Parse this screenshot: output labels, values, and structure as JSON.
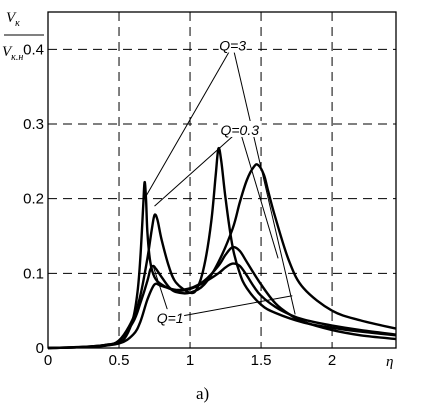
{
  "caption": "а)",
  "chart_data": {
    "type": "line",
    "title": "",
    "ylabel_numerator": "V",
    "ylabel_numerator_sub": "к",
    "ylabel_denominator": "V",
    "ylabel_denominator_sub": "к.н",
    "xlabel": "η",
    "xlim": [
      0,
      2.45
    ],
    "ylim": [
      0,
      0.45
    ],
    "xticks": [
      {
        "value": 0,
        "label": "0"
      },
      {
        "value": 0.5,
        "label": "0.5"
      },
      {
        "value": 1,
        "label": "1"
      },
      {
        "value": 1.5,
        "label": "1.5"
      },
      {
        "value": 2,
        "label": "2"
      }
    ],
    "yticks": [
      {
        "value": 0,
        "label": "0"
      },
      {
        "value": 0.1,
        "label": "0.1"
      },
      {
        "value": 0.2,
        "label": "0.2"
      },
      {
        "value": 0.3,
        "label": "0.3"
      },
      {
        "value": 0.4,
        "label": "0.4"
      }
    ],
    "grid": true,
    "annotations": [
      {
        "label": "Q=3",
        "text_x": 1.3,
        "text_y": 0.405,
        "targets": [
          [
            0.68,
            0.2
          ],
          [
            1.74,
            0.045
          ]
        ]
      },
      {
        "label": "Q=0.3",
        "text_x": 1.35,
        "text_y": 0.292,
        "targets": [
          [
            0.75,
            0.19
          ],
          [
            1.62,
            0.12
          ]
        ]
      },
      {
        "label": "Q=1",
        "text_x": 0.86,
        "text_y": 0.04,
        "targets": [
          [
            0.74,
            0.11
          ],
          [
            1.72,
            0.07
          ]
        ]
      }
    ],
    "series": [
      {
        "x": [
          0.0,
          0.2,
          0.4,
          0.5,
          0.55,
          0.6,
          0.63,
          0.65,
          0.67,
          0.68,
          0.69,
          0.7,
          0.72,
          0.75,
          0.8,
          0.9,
          1.0,
          1.1,
          1.2,
          1.25,
          1.3,
          1.35,
          1.4,
          1.45,
          1.5,
          1.6,
          1.7,
          1.8,
          2.0,
          2.2,
          2.45
        ],
        "y": [
          0.0,
          0.001,
          0.003,
          0.008,
          0.016,
          0.04,
          0.075,
          0.12,
          0.19,
          0.222,
          0.2,
          0.155,
          0.115,
          0.095,
          0.085,
          0.077,
          0.079,
          0.088,
          0.1,
          0.108,
          0.113,
          0.11,
          0.097,
          0.082,
          0.07,
          0.055,
          0.045,
          0.038,
          0.03,
          0.024,
          0.018
        ]
      },
      {
        "x": [
          0.0,
          0.2,
          0.4,
          0.5,
          0.6,
          0.65,
          0.7,
          0.73,
          0.75,
          0.77,
          0.8,
          0.85,
          0.9,
          1.0,
          1.05,
          1.1,
          1.15,
          1.18,
          1.2,
          1.22,
          1.25,
          1.3,
          1.35,
          1.4,
          1.5,
          1.6,
          1.8,
          2.0,
          2.2,
          2.45
        ],
        "y": [
          0.0,
          0.001,
          0.004,
          0.01,
          0.04,
          0.07,
          0.12,
          0.158,
          0.178,
          0.172,
          0.145,
          0.11,
          0.088,
          0.074,
          0.08,
          0.11,
          0.17,
          0.23,
          0.267,
          0.25,
          0.2,
          0.135,
          0.1,
          0.08,
          0.058,
          0.047,
          0.034,
          0.027,
          0.022,
          0.017
        ]
      },
      {
        "x": [
          0.0,
          0.2,
          0.4,
          0.5,
          0.6,
          0.65,
          0.7,
          0.72,
          0.74,
          0.76,
          0.8,
          0.85,
          0.9,
          1.0,
          1.1,
          1.2,
          1.3,
          1.35,
          1.4,
          1.45,
          1.48,
          1.52,
          1.55,
          1.6,
          1.7,
          1.8,
          2.0,
          2.2,
          2.45
        ],
        "y": [
          0.0,
          0.001,
          0.004,
          0.01,
          0.035,
          0.06,
          0.09,
          0.105,
          0.11,
          0.106,
          0.095,
          0.082,
          0.075,
          0.074,
          0.085,
          0.115,
          0.16,
          0.195,
          0.225,
          0.243,
          0.245,
          0.232,
          0.21,
          0.175,
          0.115,
          0.08,
          0.05,
          0.037,
          0.026
        ]
      },
      {
        "x": [
          0.0,
          0.3,
          0.5,
          0.6,
          0.65,
          0.7,
          0.75,
          0.8,
          0.9,
          1.0,
          1.1,
          1.2,
          1.25,
          1.3,
          1.35,
          1.4,
          1.5,
          1.6,
          1.7,
          1.8,
          2.0,
          2.2,
          2.45
        ],
        "y": [
          0.0,
          0.002,
          0.006,
          0.018,
          0.035,
          0.065,
          0.085,
          0.083,
          0.078,
          0.08,
          0.09,
          0.11,
          0.125,
          0.135,
          0.13,
          0.115,
          0.085,
          0.06,
          0.045,
          0.035,
          0.024,
          0.017,
          0.012
        ]
      }
    ]
  }
}
